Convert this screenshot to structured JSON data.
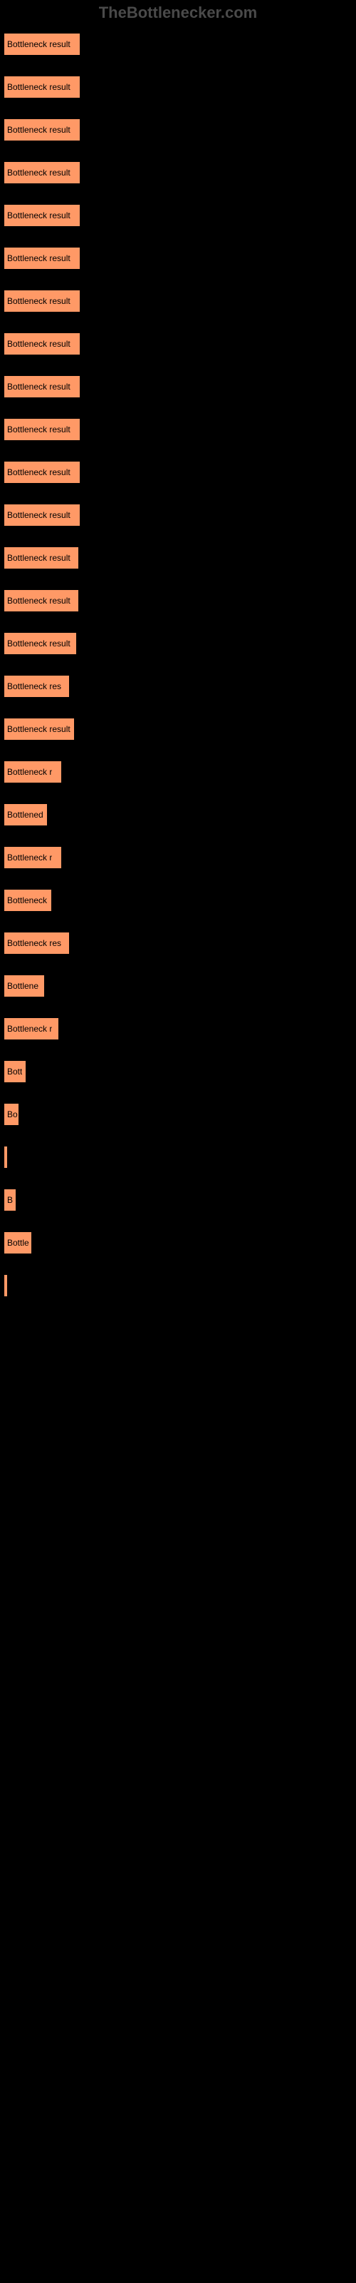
{
  "header": "TheBottlenecker.com",
  "chart": {
    "type": "bar",
    "background_color": "#000000",
    "bar_color": "#ff9966",
    "bar_border_color": "#000000",
    "label_color": "#000000",
    "label_fontsize": 12,
    "header_color": "#4a4a4a",
    "header_fontsize": 22,
    "full_label": "Bottleneck result",
    "max_width": 108,
    "bars": [
      {
        "width": 108,
        "label": "Bottleneck result"
      },
      {
        "width": 108,
        "label": "Bottleneck result"
      },
      {
        "width": 108,
        "label": "Bottleneck result"
      },
      {
        "width": 108,
        "label": "Bottleneck result"
      },
      {
        "width": 108,
        "label": "Bottleneck result"
      },
      {
        "width": 108,
        "label": "Bottleneck result"
      },
      {
        "width": 108,
        "label": "Bottleneck result"
      },
      {
        "width": 108,
        "label": "Bottleneck result"
      },
      {
        "width": 108,
        "label": "Bottleneck result"
      },
      {
        "width": 108,
        "label": "Bottleneck result"
      },
      {
        "width": 108,
        "label": "Bottleneck result"
      },
      {
        "width": 108,
        "label": "Bottleneck result"
      },
      {
        "width": 106,
        "label": "Bottleneck result"
      },
      {
        "width": 106,
        "label": "Bottleneck result"
      },
      {
        "width": 103,
        "label": "Bottleneck result"
      },
      {
        "width": 93,
        "label": "Bottleneck res"
      },
      {
        "width": 100,
        "label": "Bottleneck result"
      },
      {
        "width": 82,
        "label": "Bottleneck r"
      },
      {
        "width": 62,
        "label": "Bottlened"
      },
      {
        "width": 82,
        "label": "Bottleneck r"
      },
      {
        "width": 68,
        "label": "Bottleneck"
      },
      {
        "width": 93,
        "label": "Bottleneck res"
      },
      {
        "width": 58,
        "label": "Bottlene"
      },
      {
        "width": 78,
        "label": "Bottleneck r"
      },
      {
        "width": 32,
        "label": "Bott"
      },
      {
        "width": 22,
        "label": "Bo"
      },
      {
        "width": 5,
        "label": ""
      },
      {
        "width": 18,
        "label": "B"
      },
      {
        "width": 40,
        "label": "Bottle"
      },
      {
        "width": 5,
        "label": ""
      }
    ]
  }
}
